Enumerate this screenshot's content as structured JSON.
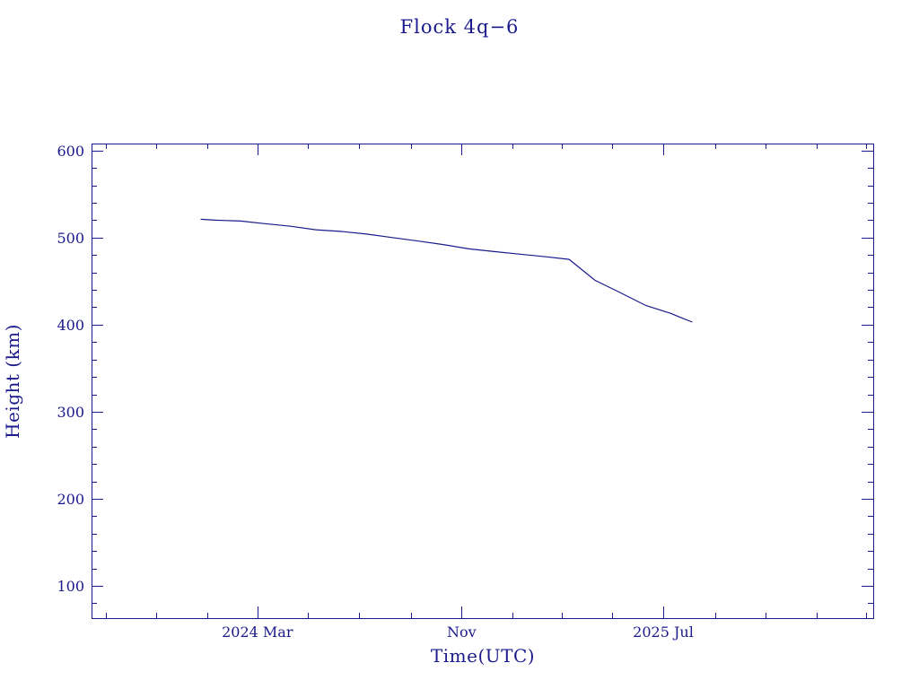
{
  "chart_data": {
    "type": "line",
    "title": "Flock 4q−6",
    "xlabel": "Time(UTC)",
    "ylabel": "Height (km)",
    "xlim": [
      "2023-08-15",
      "2026-03-10"
    ],
    "ylim": [
      63,
      608
    ],
    "x_ticks": [
      {
        "date": "2024-03-01",
        "label": "2024 Mar"
      },
      {
        "date": "2024-11-01",
        "label": "Nov"
      },
      {
        "date": "2025-07-01",
        "label": "2025 Jul"
      }
    ],
    "y_ticks": [
      100,
      200,
      300,
      400,
      500,
      600
    ],
    "grid": false,
    "series": [
      {
        "points": [
          {
            "x": "2023-12-24",
            "y": 521
          },
          {
            "x": "2024-01-10",
            "y": 520
          },
          {
            "x": "2024-02-10",
            "y": 519
          },
          {
            "x": "2024-03-10",
            "y": 516
          },
          {
            "x": "2024-04-10",
            "y": 513
          },
          {
            "x": "2024-05-10",
            "y": 509
          },
          {
            "x": "2024-06-10",
            "y": 507
          },
          {
            "x": "2024-07-10",
            "y": 504
          },
          {
            "x": "2024-08-10",
            "y": 500
          },
          {
            "x": "2024-09-10",
            "y": 496
          },
          {
            "x": "2024-10-10",
            "y": 492
          },
          {
            "x": "2024-11-10",
            "y": 487
          },
          {
            "x": "2024-12-10",
            "y": 484
          },
          {
            "x": "2025-01-10",
            "y": 481
          },
          {
            "x": "2025-02-10",
            "y": 478
          },
          {
            "x": "2025-03-10",
            "y": 475
          },
          {
            "x": "2025-04-10",
            "y": 451
          },
          {
            "x": "2025-05-10",
            "y": 437
          },
          {
            "x": "2025-06-10",
            "y": 422
          },
          {
            "x": "2025-07-10",
            "y": 413
          },
          {
            "x": "2025-07-25",
            "y": 407
          },
          {
            "x": "2025-08-05",
            "y": 403
          }
        ]
      }
    ]
  }
}
